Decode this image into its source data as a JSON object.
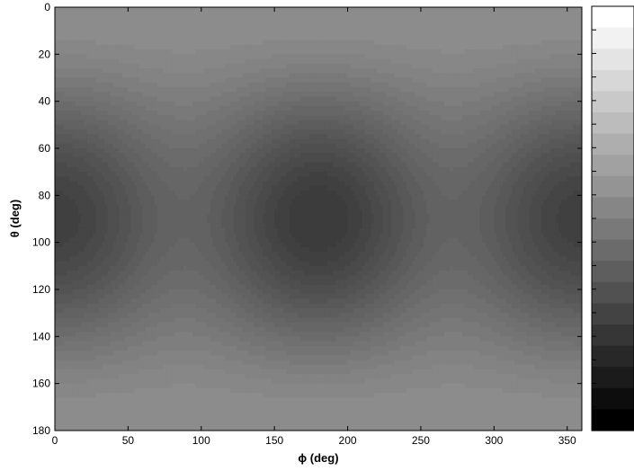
{
  "chart_data": {
    "type": "heatmap",
    "title": "",
    "xlabel": "ϕ (deg)",
    "ylabel": "θ (deg)",
    "xlim": [
      0,
      360
    ],
    "ylim": [
      180,
      0
    ],
    "xticks": [
      0,
      50,
      100,
      150,
      200,
      250,
      300,
      350
    ],
    "yticks": [
      0,
      20,
      40,
      60,
      80,
      100,
      120,
      140,
      160,
      180
    ],
    "colormap": "gray",
    "colorbar": {
      "present": true,
      "tick_labels_visible": false
    },
    "contour_levels": 18,
    "dark_regions": [
      {
        "phi": 0,
        "theta": 90,
        "shade": "dark"
      },
      {
        "phi": 180,
        "theta": 90,
        "shade": "darkest"
      },
      {
        "phi": 360,
        "theta": 90,
        "shade": "dark"
      }
    ],
    "light_regions": [
      {
        "phi": 90,
        "theta": 90,
        "shade": "light"
      },
      {
        "phi": 270,
        "theta": 90,
        "shade": "light"
      }
    ],
    "background_shade": "mid-gray"
  }
}
